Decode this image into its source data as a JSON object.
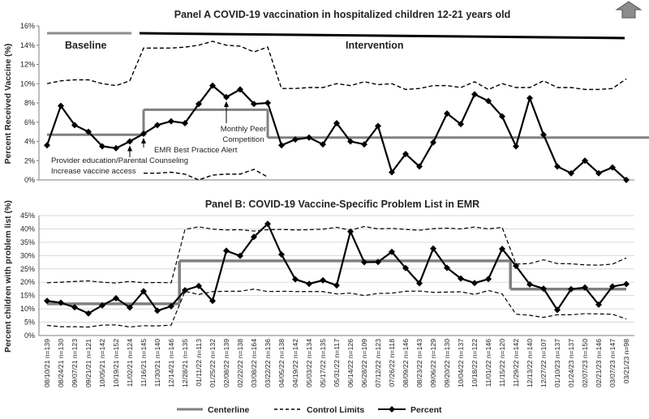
{
  "colors": {
    "percent": "#000000",
    "centerline": "#808080",
    "control": "#000000",
    "grid": "#d9d9d9",
    "axis": "#7f7f7f"
  },
  "nav_icon": "up-arrow-icon",
  "chart_data": [
    {
      "type": "line",
      "panel": "A",
      "title": "Panel A COVID-19 vaccination in hospitalized children 12-21 years old",
      "ylabel": "Percent Received Vaccine (%)",
      "ylim": [
        0,
        16
      ],
      "yticks": [
        "0%",
        "2%",
        "4%",
        "6%",
        "8%",
        "10%",
        "12%",
        "14%",
        "16%"
      ],
      "grid": false,
      "phases": {
        "baseline_label": "Baseline",
        "intervention_label": "Intervention",
        "baseline_range": [
          0,
          7
        ],
        "intervention_range": [
          8,
          48
        ]
      },
      "percent": [
        3.6,
        7.7,
        5.7,
        5.0,
        3.5,
        3.3,
        4.0,
        4.8,
        5.7,
        6.1,
        5.9,
        7.9,
        9.8,
        8.6,
        9.4,
        7.9,
        8.0,
        3.6,
        4.2,
        4.4,
        3.7,
        5.9,
        4.0,
        3.7,
        5.6,
        0.8,
        2.7,
        1.4,
        3.9,
        6.9,
        5.8,
        8.9,
        8.2,
        6.6,
        3.5,
        8.5,
        4.7,
        1.4,
        0.7,
        2.0,
        0.7,
        1.3,
        0.0
      ],
      "centerline": [
        {
          "x0": 0,
          "x1": 7,
          "y": 4.7
        },
        {
          "x0": 7,
          "x1": 16,
          "y": 7.3
        },
        {
          "x0": 16,
          "x1": 48,
          "y": 4.4
        }
      ],
      "ucl": [
        10.0,
        10.3,
        10.4,
        10.4,
        10.0,
        9.8,
        10.3,
        13.7,
        13.7,
        13.7,
        13.8,
        14.0,
        14.4,
        14.0,
        13.9,
        13.3,
        13.8,
        9.5,
        9.5,
        9.6,
        9.6,
        10.0,
        9.8,
        10.2,
        9.9,
        10.0,
        9.4,
        9.5,
        9.8,
        9.8,
        9.6,
        10.2,
        9.4,
        10.0,
        9.6,
        9.6,
        10.3,
        9.6,
        9.6,
        9.4,
        9.4,
        9.5,
        10.5
      ],
      "lcl_segment": {
        "start": 7,
        "values": [
          0.7,
          0.7,
          0.8,
          0.6,
          0.0,
          0.5,
          0.6,
          0.6,
          1.1,
          0.3
        ]
      },
      "annotations": [
        {
          "label": "Monthly Peer",
          "label2": "Competition",
          "at": 13,
          "value": 8.6
        },
        {
          "label": "EMR Best Practice Alert",
          "at": 7,
          "value": 4.8
        },
        {
          "label": "Provider education/Parental Counseling",
          "label2": "Increase vaccine access",
          "at": 6,
          "value": 4.0
        }
      ]
    },
    {
      "type": "line",
      "panel": "B",
      "title": "Panel B: COVID-19 Vaccine-Specific Problem List in EMR",
      "ylabel": "Percent children with problem list (%)",
      "ylim": [
        0,
        45
      ],
      "yticks": [
        "0%",
        "5%",
        "10%",
        "15%",
        "20%",
        "25%",
        "30%",
        "35%",
        "40%",
        "45%"
      ],
      "grid": true,
      "categories": [
        "08/10/21 n=139",
        "08/24/21 n=130",
        "09/07/21 n=123",
        "09/21/21 n=121",
        "10/05/21 n=142",
        "10/19/21 n=152",
        "11/02/21 n=124",
        "11/16/21 n=145",
        "11/30/21 n=140",
        "12/14/21 n=146",
        "12/28/21 n=135",
        "01/11/22 n=113",
        "01/25/22 n=132",
        "02/08/22 n=139",
        "02/22/22 n=138",
        "03/08/22 n=164",
        "03/22/22 n=136",
        "04/05/22 n=138",
        "04/19/22 n=142",
        "05/03/22 n=134",
        "05/17/22 n=135",
        "05/31/22 n=117",
        "06/14/22 n=126",
        "06/28/22 n=109",
        "07/12/22 n=123",
        "07/26/22 n=118",
        "08/09/22 n=146",
        "08/23/22 n=143",
        "09/06/22 n=129",
        "09/20/22 n=130",
        "10/04/22 n=137",
        "10/18/22 n=122",
        "11/01/22 n=146",
        "11/15/22 n=120",
        "11/29/22 n=142",
        "12/13/22 n=140",
        "12/27/22 n=107",
        "01/10/23 n=137",
        "01/24/23 n=137",
        "02/07/23 n=150",
        "02/21/23 n=146",
        "03/07/23 n=147",
        "03/21/23 n=98"
      ],
      "percent": [
        13.0,
        12.3,
        10.6,
        8.3,
        11.3,
        14.0,
        10.5,
        16.6,
        9.3,
        11.0,
        17.0,
        18.6,
        13.0,
        31.8,
        29.9,
        37.0,
        41.9,
        30.4,
        21.1,
        19.4,
        20.7,
        18.8,
        39.0,
        27.5,
        27.6,
        31.4,
        25.3,
        19.6,
        32.6,
        25.4,
        21.4,
        19.7,
        21.2,
        32.5,
        26.1,
        19.2,
        17.6,
        9.6,
        17.4,
        18.0,
        11.6,
        18.4,
        19.3
      ],
      "centerline": [
        {
          "x0": 0,
          "x1": 9.6,
          "y": 11.9
        },
        {
          "x0": 9.6,
          "x1": 33.6,
          "y": 28.0
        },
        {
          "x0": 33.6,
          "x1": 42,
          "y": 17.4
        }
      ],
      "ucl": [
        19.8,
        20.0,
        20.3,
        20.5,
        20.0,
        19.7,
        20.3,
        19.8,
        19.9,
        19.8,
        39.8,
        40.8,
        39.9,
        39.6,
        39.7,
        39.2,
        39.7,
        39.8,
        39.6,
        39.7,
        39.9,
        40.6,
        39.5,
        40.9,
        40.0,
        40.2,
        39.8,
        39.5,
        40.1,
        40.3,
        40.0,
        40.7,
        40.0,
        40.6,
        26.8,
        27.0,
        28.4,
        27.0,
        26.9,
        26.5,
        26.4,
        26.8,
        29.1
      ],
      "lcl": [
        3.8,
        3.3,
        3.3,
        3.2,
        3.9,
        4.0,
        3.2,
        3.7,
        3.6,
        3.9,
        16.6,
        15.4,
        16.5,
        16.6,
        16.6,
        17.4,
        16.5,
        16.6,
        16.5,
        16.5,
        16.5,
        15.6,
        15.9,
        15.0,
        15.8,
        15.9,
        16.6,
        16.7,
        16.2,
        16.3,
        16.4,
        15.4,
        16.9,
        15.6,
        8.0,
        7.6,
        6.8,
        7.8,
        7.8,
        8.2,
        8.1,
        8.0,
        6.2
      ]
    }
  ],
  "legend": {
    "centerline": "Centerline",
    "control": "Control Limits",
    "percent": "Percent"
  }
}
